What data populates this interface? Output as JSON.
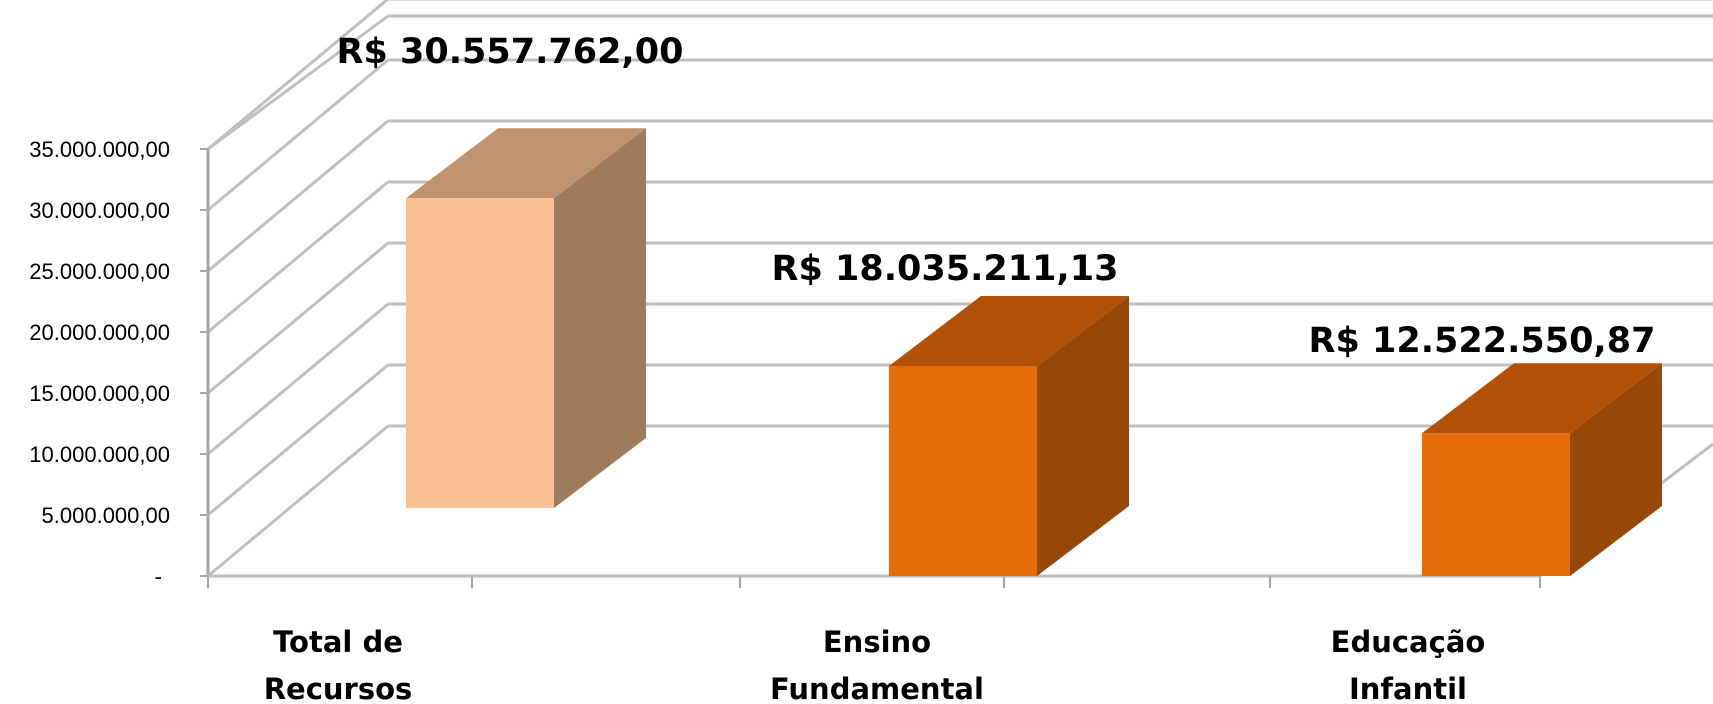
{
  "chart_data": {
    "type": "bar",
    "three_d": true,
    "categories": [
      [
        "Total de",
        "Recursos"
      ],
      [
        "Ensino",
        "Fundamental"
      ],
      [
        "Educação",
        "Infantil"
      ]
    ],
    "values": [
      30557762.0,
      18035211.13,
      12522550.87
    ],
    "data_labels": [
      "R$ 30.557.762,00",
      "R$ 18.035.211,13",
      "R$ 12.522.550,87"
    ],
    "y_ticks": [
      {
        "value": 0,
        "label": "-"
      },
      {
        "value": 5000000,
        "label": "5.000.000,00"
      },
      {
        "value": 10000000,
        "label": "10.000.000,00"
      },
      {
        "value": 15000000,
        "label": "15.000.000,00"
      },
      {
        "value": 20000000,
        "label": "20.000.000,00"
      },
      {
        "value": 25000000,
        "label": "25.000.000,00"
      },
      {
        "value": 30000000,
        "label": "30.000.000,00"
      },
      {
        "value": 35000000,
        "label": "35.000.000,00"
      }
    ],
    "ylim": [
      0,
      35000000
    ],
    "grid": true,
    "legend": "none",
    "title": "",
    "xlabel": "",
    "ylabel": "",
    "colors": {
      "bar1_front": "#F9C093",
      "bar1_side": "#A07B5B",
      "bar1_top": "#C0926D",
      "bars_front": "#E46C0A",
      "bars_side": "#974806",
      "bars_top": "#B05107",
      "grid": "#BFBFBF",
      "axis": "#A6A6A6"
    }
  }
}
